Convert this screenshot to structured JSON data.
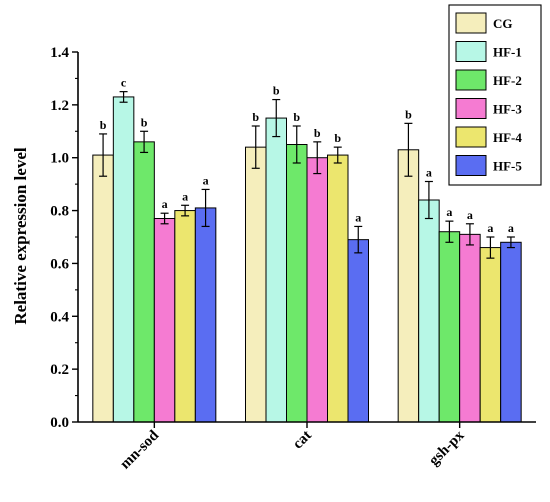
{
  "chart_data": {
    "type": "bar",
    "ylabel": "Relative expression level",
    "xlabel": "",
    "ylim": [
      0,
      1.4
    ],
    "yticks": [
      "0.0",
      "0.2",
      "0.4",
      "0.6",
      "0.8",
      "1.0",
      "1.2",
      "1.4"
    ],
    "categories": [
      "mn-sod",
      "cat",
      "gsh-px"
    ],
    "legend_position": "top-right",
    "series": [
      {
        "name": "CG",
        "color": "#f5eebc",
        "values": [
          1.01,
          1.04,
          1.03
        ],
        "errors": [
          0.08,
          0.08,
          0.1
        ],
        "labels": [
          "b",
          "b",
          "b"
        ]
      },
      {
        "name": "HF-1",
        "color": "#b7f7e6",
        "values": [
          1.23,
          1.15,
          0.84
        ],
        "errors": [
          0.02,
          0.07,
          0.07
        ],
        "labels": [
          "c",
          "b",
          "a"
        ]
      },
      {
        "name": "HF-2",
        "color": "#6ee86a",
        "values": [
          1.06,
          1.05,
          0.72
        ],
        "errors": [
          0.04,
          0.07,
          0.04
        ],
        "labels": [
          "b",
          "b",
          "a"
        ]
      },
      {
        "name": "HF-3",
        "color": "#f57bd2",
        "values": [
          0.77,
          1.0,
          0.71
        ],
        "errors": [
          0.02,
          0.06,
          0.04
        ],
        "labels": [
          "a",
          "b",
          "a"
        ]
      },
      {
        "name": "HF-4",
        "color": "#ece66e",
        "values": [
          0.8,
          1.01,
          0.66
        ],
        "errors": [
          0.02,
          0.03,
          0.04
        ],
        "labels": [
          "a",
          "b",
          "a"
        ]
      },
      {
        "name": "HF-5",
        "color": "#5a6df2",
        "values": [
          0.81,
          0.69,
          0.68
        ],
        "errors": [
          0.07,
          0.05,
          0.02
        ],
        "labels": [
          "a",
          "a",
          "a"
        ]
      }
    ]
  }
}
